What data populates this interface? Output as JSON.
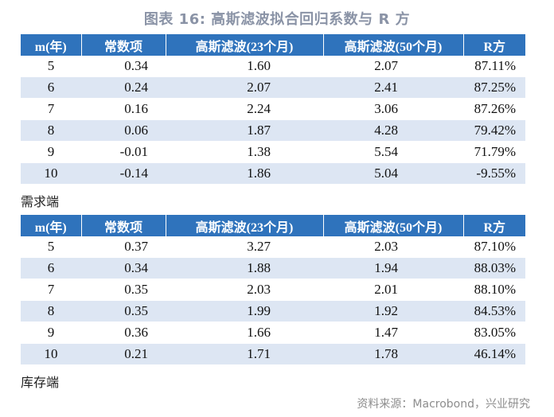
{
  "title": "图表 16: 高斯滤波拟合回归系数与 R 方",
  "headers": [
    "m(年)",
    "常数项",
    "高斯滤波(23个月)",
    "高斯滤波(50个月)",
    "R方"
  ],
  "demand": {
    "caption": "需求端",
    "rows": [
      [
        "5",
        "0.34",
        "1.60",
        "2.07",
        "87.11%"
      ],
      [
        "6",
        "0.24",
        "2.07",
        "2.41",
        "87.25%"
      ],
      [
        "7",
        "0.16",
        "2.24",
        "3.06",
        "87.26%"
      ],
      [
        "8",
        "0.06",
        "1.87",
        "4.28",
        "79.42%"
      ],
      [
        "9",
        "-0.01",
        "1.38",
        "5.54",
        "71.79%"
      ],
      [
        "10",
        "-0.14",
        "1.86",
        "5.04",
        "-9.55%"
      ]
    ]
  },
  "inventory": {
    "caption": "库存端",
    "rows": [
      [
        "5",
        "0.37",
        "3.27",
        "2.03",
        "87.10%"
      ],
      [
        "6",
        "0.34",
        "1.88",
        "1.94",
        "88.03%"
      ],
      [
        "7",
        "0.35",
        "2.03",
        "2.01",
        "88.10%"
      ],
      [
        "8",
        "0.35",
        "1.99",
        "1.92",
        "84.53%"
      ],
      [
        "9",
        "0.36",
        "1.66",
        "1.47",
        "83.05%"
      ],
      [
        "10",
        "0.21",
        "1.71",
        "1.78",
        "46.14%"
      ]
    ]
  },
  "source": "资料来源：Macrobond，兴业研究",
  "colors": {
    "header_bg": "#2f73bc",
    "alt_row_bg": "#dde6f3",
    "title": "#8a93a6"
  }
}
